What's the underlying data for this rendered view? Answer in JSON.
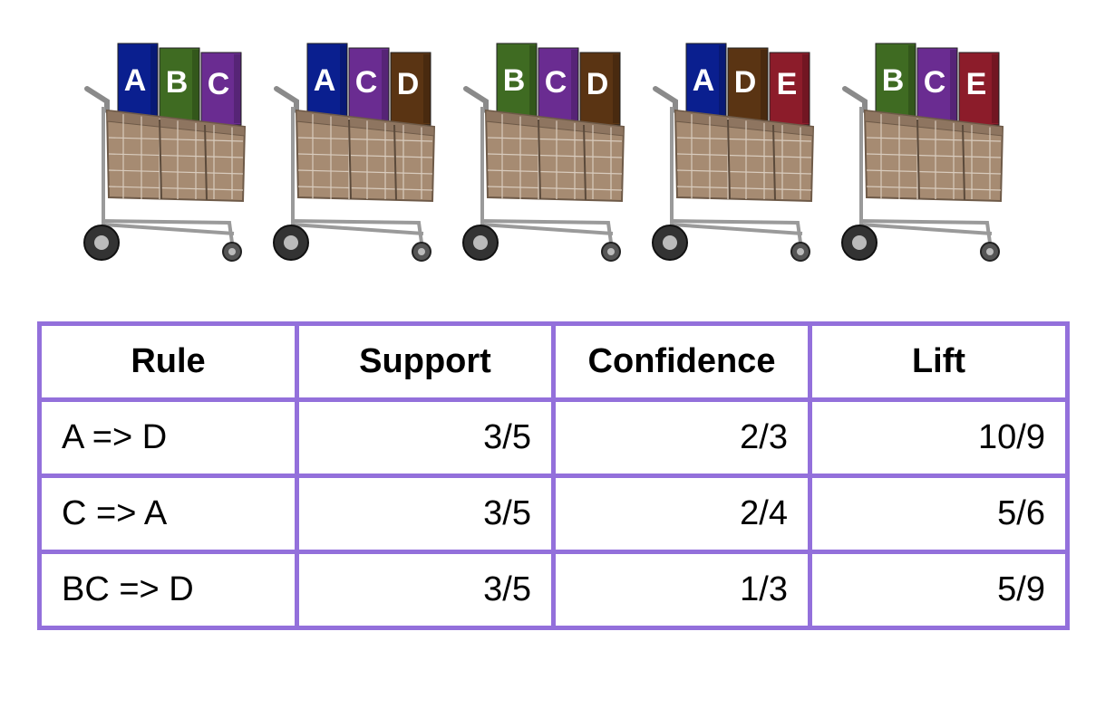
{
  "carts": [
    {
      "items": [
        {
          "letter": "A",
          "color": "#0a1f8f"
        },
        {
          "letter": "B",
          "color": "#3f6b22"
        },
        {
          "letter": "C",
          "color": "#6a2c91"
        }
      ]
    },
    {
      "items": [
        {
          "letter": "A",
          "color": "#0a1f8f"
        },
        {
          "letter": "C",
          "color": "#6a2c91"
        },
        {
          "letter": "D",
          "color": "#5a3413"
        }
      ]
    },
    {
      "items": [
        {
          "letter": "B",
          "color": "#3f6b22"
        },
        {
          "letter": "C",
          "color": "#6a2c91"
        },
        {
          "letter": "D",
          "color": "#5a3413"
        }
      ]
    },
    {
      "items": [
        {
          "letter": "A",
          "color": "#0a1f8f"
        },
        {
          "letter": "D",
          "color": "#5a3413"
        },
        {
          "letter": "E",
          "color": "#8c1c2a"
        }
      ]
    },
    {
      "items": [
        {
          "letter": "B",
          "color": "#3f6b22"
        },
        {
          "letter": "C",
          "color": "#6a2c91"
        },
        {
          "letter": "E",
          "color": "#8c1c2a"
        }
      ]
    }
  ],
  "table": {
    "headers": [
      "Rule",
      "Support",
      "Confidence",
      "Lift"
    ],
    "rows": [
      {
        "rule": "A => D",
        "support": "3/5",
        "confidence": "2/3",
        "lift": "10/9"
      },
      {
        "rule": "C => A",
        "support": "3/5",
        "confidence": "2/4",
        "lift": "5/6"
      },
      {
        "rule": "BC => D",
        "support": "3/5",
        "confidence": "1/3",
        "lift": "5/9"
      }
    ],
    "border_color": "#9370db"
  }
}
